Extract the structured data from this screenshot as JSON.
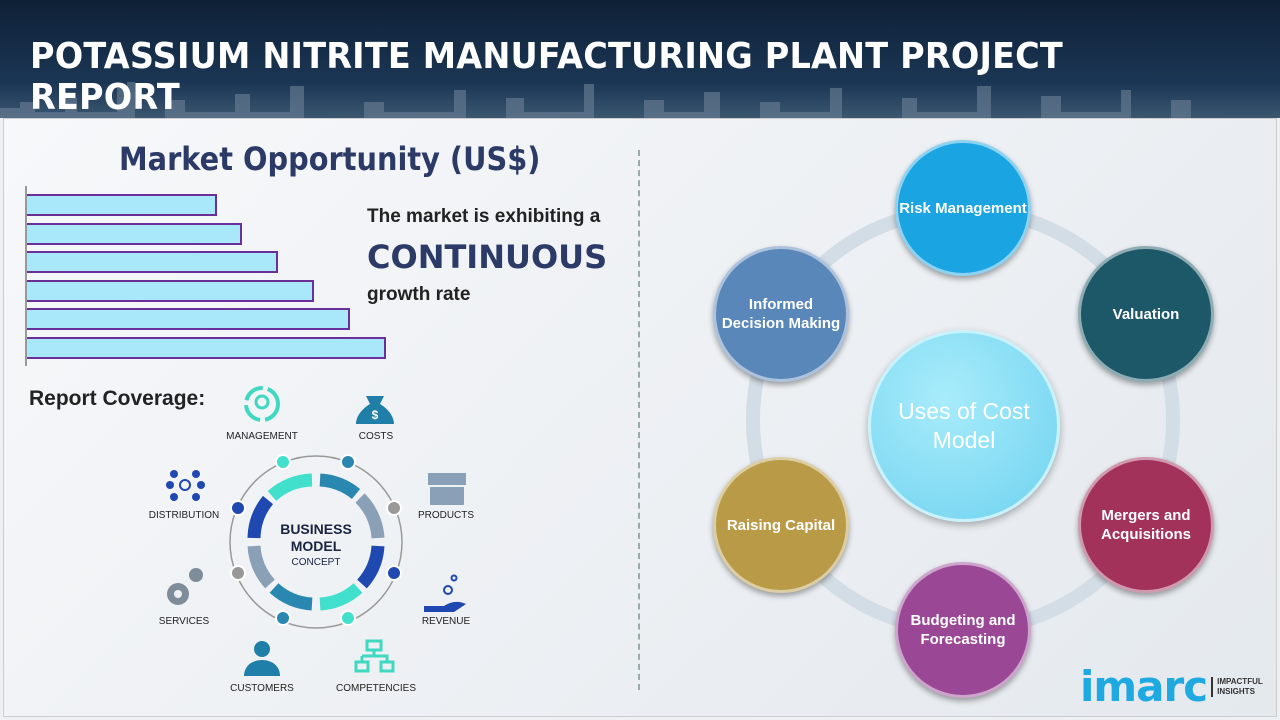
{
  "header": {
    "title": "POTASSIUM NITRITE MANUFACTURING PLANT PROJECT REPORT"
  },
  "market": {
    "title": "Market Opportunity (US$)",
    "line1": "The market is exhibiting a",
    "line2": "CONTINUOUS",
    "line3": "growth rate",
    "bars_relative_pct": [
      53,
      60,
      70,
      80,
      90,
      100
    ],
    "bar_fill": "#a9e8fb",
    "bar_border": "#6b2f9c"
  },
  "coverage": {
    "title": "Report Coverage:",
    "center": {
      "line1": "BUSINESS",
      "line2": "MODEL",
      "line3": "CONCEPT"
    },
    "items": [
      "MANAGEMENT",
      "COSTS",
      "PRODUCTS",
      "REVENUE",
      "COMPETENCIES",
      "CUSTOMERS",
      "SERVICES",
      "DISTRIBUTION"
    ]
  },
  "uses": {
    "center": "Uses of Cost Model",
    "nodes": [
      {
        "label": "Risk Management",
        "color": "#1ba4e2"
      },
      {
        "label": "Valuation",
        "color": "#1d5868"
      },
      {
        "label": "Mergers and Acquisitions",
        "color": "#a3325a"
      },
      {
        "label": "Budgeting and Forecasting",
        "color": "#9a4896"
      },
      {
        "label": "Raising Capital",
        "color": "#b99a47"
      },
      {
        "label": "Informed Decision Making",
        "color": "#5a87ba"
      }
    ]
  },
  "logo": {
    "word": "imarc",
    "tagline": "IMPACTFUL INSIGHTS"
  }
}
